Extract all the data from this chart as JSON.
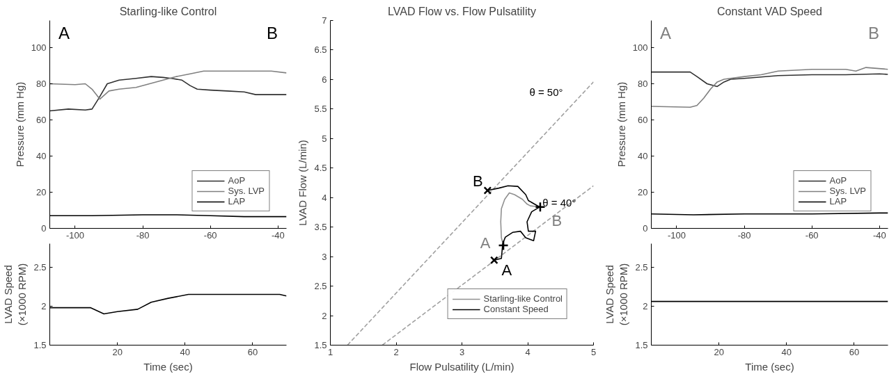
{
  "chart_data": [
    {
      "type": "line",
      "title": "Starling-like Control",
      "ylabel": "Pressure (mm Hg)",
      "xlim": [
        -107.5,
        -37.5
      ],
      "xticks": [
        -100,
        -80,
        -60,
        -40
      ],
      "ylim": [
        0,
        115
      ],
      "yticks": [
        0,
        20,
        40,
        60,
        80,
        100
      ],
      "legend": "bottom right",
      "annotations": [
        "A",
        "B"
      ],
      "series": [
        {
          "name": "AoP",
          "color": "#303030",
          "x": [
            -107.5,
            -102,
            -97,
            -95,
            -93,
            -90.5,
            -87,
            -82,
            -77.5,
            -74,
            -71.5,
            -68.4,
            -66,
            -63.9,
            -60,
            -55,
            -50,
            -46.6,
            -42,
            -37.5
          ],
          "values": [
            65,
            66,
            65.5,
            66,
            72,
            80,
            82,
            83,
            84,
            83.5,
            83,
            82,
            79,
            77,
            76.5,
            76,
            75.5,
            74,
            74,
            74
          ]
        },
        {
          "name": "Sys. LVP",
          "color": "#808080",
          "x": [
            -107.5,
            -100,
            -97,
            -95,
            -92.7,
            -90,
            -87,
            -82,
            -78,
            -74,
            -70,
            -66,
            -62,
            -58,
            -54,
            -50,
            -46,
            -42,
            -37.5
          ],
          "values": [
            80,
            79.5,
            80,
            77,
            71.5,
            76,
            77,
            78,
            80,
            82,
            84,
            85.5,
            87,
            87,
            87,
            87,
            87,
            87,
            86
          ]
        },
        {
          "name": "LAP",
          "color": "#000000",
          "x": [
            -107.5,
            -95,
            -80,
            -70,
            -60,
            -50,
            -40,
            -37.5
          ],
          "values": [
            7,
            7,
            7.5,
            7.5,
            7,
            6.5,
            6.5,
            6.5
          ]
        }
      ]
    },
    {
      "type": "line",
      "xlabel": "Time (sec)",
      "ylabel": "LVAD Speed\n(×1000 RPM)",
      "xlim": [
        0,
        70
      ],
      "xticks": [
        20,
        40,
        60
      ],
      "ylim": [
        1.5,
        2.8
      ],
      "yticks": [
        1.5,
        2,
        2.5
      ],
      "series": [
        {
          "color": "#000000",
          "x": [
            0,
            12,
            16,
            20,
            26,
            30,
            35,
            41,
            68,
            70
          ],
          "values": [
            1.98,
            1.98,
            1.9,
            1.93,
            1.96,
            2.05,
            2.1,
            2.15,
            2.15,
            2.13
          ]
        }
      ]
    },
    {
      "type": "line",
      "title": "LVAD Flow vs. Flow Pulsatility",
      "xlabel": "Flow Pulsatility (L/min)",
      "ylabel": "LVAD Flow (L/min)",
      "xlim": [
        1,
        5
      ],
      "xticks": [
        1,
        2,
        3,
        4,
        5
      ],
      "ylim": [
        1.5,
        7
      ],
      "yticks": [
        1.5,
        2,
        2.5,
        3,
        3.5,
        4,
        4.5,
        5,
        5.5,
        6,
        6.5,
        7
      ],
      "legend": "bottom right",
      "annotations": [
        "θ = 50°",
        "θ = 40°",
        {
          "text": "A",
          "x": 3.63,
          "y": 3.19
        },
        {
          "text": "B",
          "x": 4.19,
          "y": 3.84
        },
        {
          "text": "A",
          "x": 3.49,
          "y": 2.94
        },
        {
          "text": "B",
          "x": 3.39,
          "y": 4.12
        }
      ],
      "series": [
        {
          "color": "#a0a0a0",
          "line_style": "dashed",
          "x": [
            1.26,
            5
          ],
          "values": [
            1.5,
            5.96
          ]
        },
        {
          "color": "#a0a0a0",
          "line_style": "dashed",
          "x": [
            1.79,
            5
          ],
          "values": [
            1.5,
            4.2
          ]
        },
        {
          "name": "Starling-like Control",
          "color": "#909090",
          "x": [
            3.63,
            3.6,
            3.59,
            3.6,
            3.65,
            3.72,
            3.8,
            3.92,
            3.99,
            4.04,
            4.19
          ],
          "values": [
            3.19,
            3.32,
            3.59,
            3.81,
            3.97,
            4.08,
            4.05,
            3.97,
            3.89,
            3.86,
            3.84
          ]
        },
        {
          "name": "Constant Speed",
          "color": "#000000",
          "x": [
            3.49,
            3.6,
            3.62,
            3.66,
            3.77,
            3.89,
            3.97,
            4.09,
            4.12,
            4.01,
            3.99,
            4.06,
            4.18,
            4.01,
            3.97,
            3.85,
            3.7,
            3.56,
            3.39
          ],
          "values": [
            2.94,
            2.97,
            3.22,
            3.33,
            3.41,
            3.43,
            3.32,
            3.27,
            3.43,
            3.43,
            3.59,
            3.76,
            3.84,
            3.95,
            4.05,
            4.19,
            4.2,
            4.16,
            4.12
          ]
        },
        {
          "type": "scatter",
          "marker": "x",
          "color": "#000000",
          "x": [
            3.49,
            3.39
          ],
          "values": [
            2.94,
            4.12
          ]
        },
        {
          "type": "scatter",
          "marker": "cross",
          "color": "#000000",
          "x": [
            3.63,
            4.19
          ],
          "values": [
            3.19,
            3.84
          ]
        }
      ]
    },
    {
      "type": "line",
      "title": "Constant VAD Speed",
      "ylabel": "Pressure (mm Hg)",
      "xlim": [
        -107.5,
        -37.5
      ],
      "xticks": [
        -100,
        -80,
        -60,
        -40
      ],
      "ylim": [
        0,
        115
      ],
      "yticks": [
        0,
        20,
        40,
        60,
        80,
        100
      ],
      "legend": "bottom right",
      "annotations": [
        "A",
        "B"
      ],
      "series": [
        {
          "name": "AoP",
          "color": "#303030",
          "x": [
            -107.5,
            -96,
            -94,
            -91,
            -88,
            -86,
            -84,
            -80,
            -70,
            -60,
            -50,
            -40,
            -37.5
          ],
          "values": [
            86.5,
            86.5,
            84,
            80,
            78.5,
            81,
            82.5,
            83,
            84.5,
            85,
            85,
            85.5,
            85.2
          ]
        },
        {
          "name": "Sys. LVP",
          "color": "#808080",
          "x": [
            -107.5,
            -96,
            -94,
            -92,
            -90,
            -88,
            -86,
            -80,
            -75,
            -70,
            -60,
            -50,
            -47,
            -44,
            -37.5
          ],
          "values": [
            67.5,
            67,
            68,
            72,
            77,
            81,
            82.5,
            84,
            85,
            87,
            88,
            88,
            87,
            89,
            88
          ]
        },
        {
          "name": "LAP",
          "color": "#000000",
          "x": [
            -107.5,
            -95,
            -80,
            -60,
            -40,
            -37.5
          ],
          "values": [
            8,
            7.5,
            8,
            8,
            8.5,
            8.5
          ]
        }
      ]
    },
    {
      "type": "line",
      "xlabel": "Time (sec)",
      "ylabel": "LVAD Speed\n(×1000 RPM)",
      "xlim": [
        0,
        70
      ],
      "xticks": [
        20,
        40,
        60
      ],
      "ylim": [
        1.5,
        2.8
      ],
      "yticks": [
        1.5,
        2,
        2.5
      ],
      "series": [
        {
          "color": "#000000",
          "x": [
            0,
            70
          ],
          "values": [
            2.06,
            2.06
          ]
        }
      ]
    }
  ]
}
